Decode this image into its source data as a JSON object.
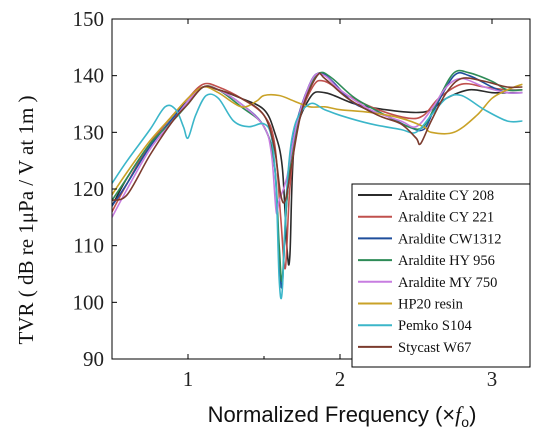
{
  "chart_data": {
    "type": "line",
    "title": "",
    "ylabel": "TVR ( dB re 1μPa / V at 1m )",
    "xlabel_main": "Normalized Frequency (×",
    "xlabel_var": "f",
    "xlabel_sub": "o",
    "xlabel_close": ")",
    "xlim": [
      0.5,
      3.25
    ],
    "ylim": [
      90,
      150
    ],
    "xticks": [
      1,
      2,
      3
    ],
    "xtick_labels": [
      "1",
      "2",
      "3"
    ],
    "yticks": [
      90,
      100,
      110,
      120,
      130,
      140,
      150
    ],
    "ytick_labels": [
      "90",
      "100",
      "110",
      "120",
      "130",
      "140",
      "150"
    ],
    "grid": false,
    "legend_position": "bottom-right",
    "series": [
      {
        "name": "Araldite CY 208",
        "color": "#2b2b2b",
        "points": [
          [
            0.5,
            117
          ],
          [
            0.6,
            122
          ],
          [
            0.75,
            128
          ],
          [
            0.9,
            133
          ],
          [
            1.0,
            135.5
          ],
          [
            1.1,
            138
          ],
          [
            1.2,
            137.5
          ],
          [
            1.35,
            136
          ],
          [
            1.5,
            134
          ],
          [
            1.57,
            130
          ],
          [
            1.62,
            124
          ],
          [
            1.65,
            110
          ],
          [
            1.67,
            108
          ],
          [
            1.7,
            128
          ],
          [
            1.8,
            136
          ],
          [
            1.9,
            137
          ],
          [
            2.1,
            135
          ],
          [
            2.3,
            134
          ],
          [
            2.5,
            133.5
          ],
          [
            2.6,
            134
          ],
          [
            2.7,
            136
          ],
          [
            2.85,
            137.5
          ],
          [
            3.0,
            137
          ],
          [
            3.1,
            137
          ],
          [
            3.2,
            137
          ]
        ]
      },
      {
        "name": "Araldite CY 221",
        "color": "#c0504d",
        "points": [
          [
            0.5,
            116
          ],
          [
            0.6,
            121
          ],
          [
            0.75,
            128
          ],
          [
            0.9,
            133
          ],
          [
            1.0,
            136
          ],
          [
            1.1,
            138.5
          ],
          [
            1.2,
            138
          ],
          [
            1.35,
            136
          ],
          [
            1.5,
            133
          ],
          [
            1.57,
            128
          ],
          [
            1.61,
            115
          ],
          [
            1.64,
            106
          ],
          [
            1.67,
            120
          ],
          [
            1.72,
            131
          ],
          [
            1.82,
            138
          ],
          [
            1.9,
            139
          ],
          [
            2.05,
            136.5
          ],
          [
            2.25,
            134
          ],
          [
            2.45,
            132.5
          ],
          [
            2.55,
            133
          ],
          [
            2.65,
            136
          ],
          [
            2.8,
            138.5
          ],
          [
            2.95,
            138
          ],
          [
            3.1,
            137.5
          ],
          [
            3.2,
            137.5
          ]
        ]
      },
      {
        "name": "Araldite CW1312",
        "color": "#1f4e9c",
        "points": [
          [
            0.5,
            117
          ],
          [
            0.6,
            121
          ],
          [
            0.75,
            127.5
          ],
          [
            0.9,
            132.5
          ],
          [
            1.0,
            135.5
          ],
          [
            1.1,
            138
          ],
          [
            1.2,
            137.5
          ],
          [
            1.35,
            135
          ],
          [
            1.5,
            131
          ],
          [
            1.57,
            124
          ],
          [
            1.6,
            108
          ],
          [
            1.62,
            103
          ],
          [
            1.65,
            118
          ],
          [
            1.7,
            130
          ],
          [
            1.8,
            138.5
          ],
          [
            1.87,
            140.5
          ],
          [
            1.95,
            139
          ],
          [
            2.1,
            135
          ],
          [
            2.3,
            133
          ],
          [
            2.45,
            131
          ],
          [
            2.55,
            130.5
          ],
          [
            2.62,
            134
          ],
          [
            2.75,
            140
          ],
          [
            2.85,
            140
          ],
          [
            3.0,
            138
          ],
          [
            3.1,
            137
          ],
          [
            3.2,
            137
          ]
        ]
      },
      {
        "name": "Araldite HY 956",
        "color": "#2e8b57",
        "points": [
          [
            0.5,
            118
          ],
          [
            0.6,
            122
          ],
          [
            0.75,
            128
          ],
          [
            0.9,
            132
          ],
          [
            1.0,
            135
          ],
          [
            1.1,
            138
          ],
          [
            1.2,
            137.5
          ],
          [
            1.35,
            134.5
          ],
          [
            1.5,
            131
          ],
          [
            1.57,
            124
          ],
          [
            1.6,
            110
          ],
          [
            1.62,
            104
          ],
          [
            1.65,
            118
          ],
          [
            1.7,
            129
          ],
          [
            1.8,
            138
          ],
          [
            1.87,
            140.5
          ],
          [
            1.95,
            139.5
          ],
          [
            2.1,
            136
          ],
          [
            2.3,
            133
          ],
          [
            2.45,
            131
          ],
          [
            2.55,
            131
          ],
          [
            2.65,
            136
          ],
          [
            2.75,
            140.5
          ],
          [
            2.85,
            140.5
          ],
          [
            3.0,
            139
          ],
          [
            3.1,
            137.5
          ],
          [
            3.2,
            137.5
          ]
        ]
      },
      {
        "name": "Araldite MY 750",
        "color": "#c77de0",
        "points": [
          [
            0.5,
            115
          ],
          [
            0.6,
            120
          ],
          [
            0.75,
            127
          ],
          [
            0.9,
            132
          ],
          [
            1.0,
            135.5
          ],
          [
            1.1,
            138
          ],
          [
            1.2,
            137.5
          ],
          [
            1.35,
            135
          ],
          [
            1.5,
            131
          ],
          [
            1.55,
            126
          ],
          [
            1.58,
            116
          ],
          [
            1.6,
            118
          ],
          [
            1.65,
            122
          ],
          [
            1.72,
            132
          ],
          [
            1.82,
            139.5
          ],
          [
            1.9,
            140
          ],
          [
            2.0,
            137.5
          ],
          [
            2.2,
            134
          ],
          [
            2.4,
            132
          ],
          [
            2.5,
            131
          ],
          [
            2.6,
            134
          ],
          [
            2.7,
            138
          ],
          [
            2.8,
            139.5
          ],
          [
            2.95,
            138
          ],
          [
            3.1,
            137
          ],
          [
            3.2,
            137
          ]
        ]
      },
      {
        "name": "HP20 resin",
        "color": "#c9a227",
        "points": [
          [
            0.5,
            119
          ],
          [
            0.6,
            123
          ],
          [
            0.75,
            128.5
          ],
          [
            0.9,
            133
          ],
          [
            1.0,
            136
          ],
          [
            1.1,
            138
          ],
          [
            1.2,
            137
          ],
          [
            1.35,
            134.5
          ],
          [
            1.45,
            135.5
          ],
          [
            1.5,
            136.5
          ],
          [
            1.6,
            136.5
          ],
          [
            1.7,
            135.5
          ],
          [
            1.8,
            134.5
          ],
          [
            1.9,
            134.5
          ],
          [
            2.0,
            134
          ],
          [
            2.2,
            133.5
          ],
          [
            2.4,
            132.5
          ],
          [
            2.55,
            131
          ],
          [
            2.6,
            130
          ],
          [
            2.75,
            130
          ],
          [
            2.9,
            133
          ],
          [
            3.0,
            136
          ],
          [
            3.1,
            137.5
          ],
          [
            3.2,
            138.5
          ]
        ]
      },
      {
        "name": "Pemko S104",
        "color": "#3bb6c9",
        "points": [
          [
            0.5,
            121
          ],
          [
            0.6,
            125
          ],
          [
            0.75,
            130.5
          ],
          [
            0.85,
            134.5
          ],
          [
            0.92,
            134
          ],
          [
            0.97,
            131
          ],
          [
            1.0,
            129
          ],
          [
            1.05,
            133
          ],
          [
            1.12,
            136.5
          ],
          [
            1.2,
            136
          ],
          [
            1.3,
            132
          ],
          [
            1.4,
            131
          ],
          [
            1.5,
            131.5
          ],
          [
            1.55,
            129
          ],
          [
            1.58,
            120
          ],
          [
            1.6,
            104
          ],
          [
            1.62,
            102
          ],
          [
            1.65,
            120
          ],
          [
            1.7,
            131
          ],
          [
            1.8,
            135
          ],
          [
            1.9,
            134
          ],
          [
            2.0,
            133
          ],
          [
            2.2,
            131.5
          ],
          [
            2.4,
            130.5
          ],
          [
            2.5,
            130
          ],
          [
            2.6,
            133
          ],
          [
            2.7,
            136
          ],
          [
            2.8,
            136.5
          ],
          [
            2.95,
            134
          ],
          [
            3.1,
            132
          ],
          [
            3.2,
            132
          ]
        ]
      },
      {
        "name": "Stycast W67",
        "color": "#7b3b2e",
        "points": [
          [
            0.5,
            118
          ],
          [
            0.6,
            119
          ],
          [
            0.75,
            126
          ],
          [
            0.9,
            132
          ],
          [
            1.0,
            135
          ],
          [
            1.1,
            138
          ],
          [
            1.2,
            137.5
          ],
          [
            1.35,
            136
          ],
          [
            1.5,
            133
          ],
          [
            1.57,
            127
          ],
          [
            1.61,
            119
          ],
          [
            1.64,
            118
          ],
          [
            1.68,
            124
          ],
          [
            1.75,
            134
          ],
          [
            1.85,
            140
          ],
          [
            1.9,
            139.5
          ],
          [
            2.05,
            136
          ],
          [
            2.25,
            133
          ],
          [
            2.4,
            131.5
          ],
          [
            2.5,
            129
          ],
          [
            2.53,
            128
          ],
          [
            2.6,
            132
          ],
          [
            2.7,
            137
          ],
          [
            2.8,
            139.5
          ],
          [
            2.95,
            139
          ],
          [
            3.1,
            138
          ],
          [
            3.2,
            138
          ]
        ]
      }
    ]
  }
}
